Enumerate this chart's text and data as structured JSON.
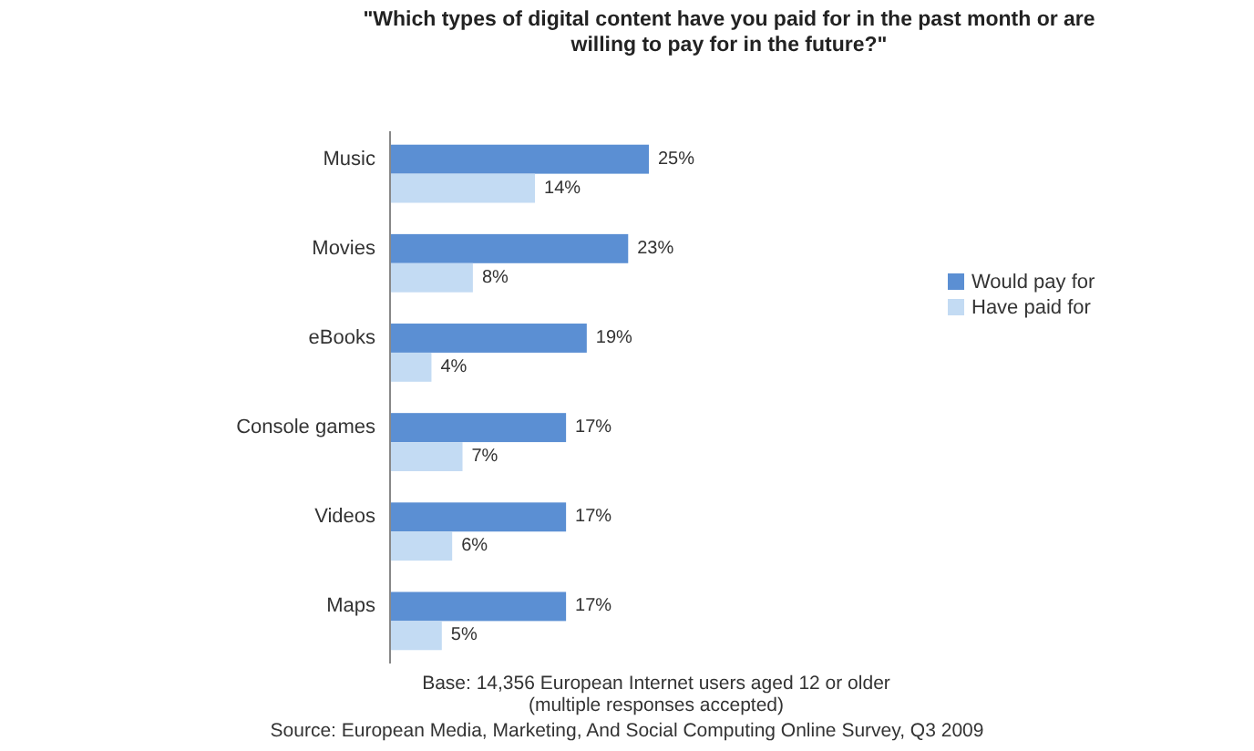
{
  "chart_data": {
    "type": "bar",
    "orientation": "horizontal",
    "title": "\"Which types of digital content have you paid for in the past month or are willing to pay for in the future?\"",
    "categories": [
      "Music",
      "Movies",
      "eBooks",
      "Console games",
      "Videos",
      "Maps"
    ],
    "series": [
      {
        "name": "Would pay for",
        "color": "#5b8fd3",
        "values": [
          25,
          23,
          19,
          17,
          17,
          17
        ],
        "value_labels": [
          "25%",
          "23%",
          "19%",
          "17%",
          "17%",
          "17%"
        ]
      },
      {
        "name": "Have paid for",
        "color": "#c3dbf3",
        "values": [
          14,
          8,
          4,
          7,
          6,
          5
        ],
        "value_labels": [
          "14%",
          "8%",
          "4%",
          "7%",
          "6%",
          "5%"
        ]
      }
    ],
    "legend": "right",
    "annotations": [
      "Base: 14,356 European Internet users aged 12 or older",
      "(multiple responses accepted)",
      "Source: European Media, Marketing, And Social Computing Online Survey, Q3 2009"
    ]
  }
}
